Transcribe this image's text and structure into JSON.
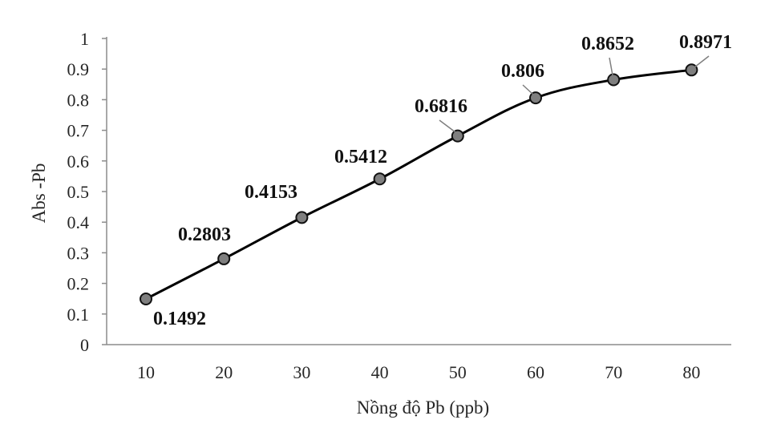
{
  "chart_data": {
    "type": "line",
    "title": "",
    "xlabel": "Nồng độ Pb (ppb)",
    "ylabel": "Abs -Pb",
    "x": [
      10,
      20,
      30,
      40,
      50,
      60,
      70,
      80
    ],
    "x_tick_labels": [
      "10",
      "20",
      "30",
      "40",
      "50",
      "60",
      "70",
      "80"
    ],
    "y_ticks": [
      0,
      0.1,
      0.2,
      0.3,
      0.4,
      0.5,
      0.6,
      0.7,
      0.8,
      0.9,
      1
    ],
    "y_tick_labels": [
      "0",
      "0.1",
      "0.2",
      "0.3",
      "0.4",
      "0.5",
      "0.6",
      "0.7",
      "0.8",
      "0.9",
      "1"
    ],
    "ylim": [
      0,
      1
    ],
    "grid": false,
    "legend": false,
    "series": [
      {
        "values": [
          0.1492,
          0.2803,
          0.4153,
          0.5412,
          0.6816,
          0.806,
          0.8652,
          0.8971
        ],
        "data_labels": [
          "0.1492",
          "0.2803",
          "0.4153",
          "0.5412",
          "0.6816",
          "0.806",
          "0.8652",
          "0.8971"
        ],
        "line_color": "#000000",
        "marker_color": "#7f7f7f"
      }
    ]
  }
}
